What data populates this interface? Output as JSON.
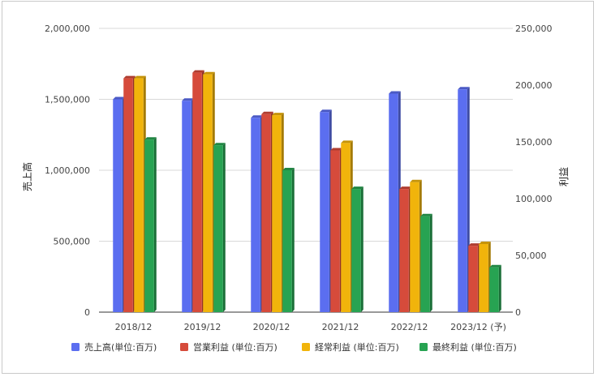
{
  "chart_data": {
    "type": "bar",
    "categories": [
      "2018/12",
      "2019/12",
      "2020/12",
      "2021/12",
      "2022/12",
      "2023/12 (予)"
    ],
    "ylabel_left": "売上高",
    "ylabel_right": "利益",
    "ylim_left": [
      0,
      2000000
    ],
    "ylim_right": [
      0,
      250000
    ],
    "yticks_left": [
      "0",
      "500,000",
      "1,000,000",
      "1,500,000",
      "2,000,000"
    ],
    "yticks_right": [
      "0",
      "50,000",
      "100,000",
      "150,000",
      "200,000",
      "250,000"
    ],
    "grid": true,
    "legend_position": "bottom",
    "series": [
      {
        "name": "売上高(単位:百万)",
        "axis": "left",
        "color": "#5b6ef0",
        "values": [
          1500000,
          1490000,
          1370000,
          1410000,
          1540000,
          1570000
        ]
      },
      {
        "name": "営業利益 (単位:百万)",
        "axis": "right",
        "color": "#d64b3b",
        "values": [
          206000,
          211000,
          174500,
          142500,
          108500,
          58500
        ]
      },
      {
        "name": "経常利益 (単位:百万)",
        "axis": "right",
        "color": "#f1b40b",
        "values": [
          206000,
          209500,
          173500,
          149000,
          114500,
          60000
        ]
      },
      {
        "name": "最終利益 (単位:百万)",
        "axis": "right",
        "color": "#27a352",
        "values": [
          152000,
          147000,
          125000,
          108500,
          84500,
          39500
        ]
      }
    ]
  }
}
